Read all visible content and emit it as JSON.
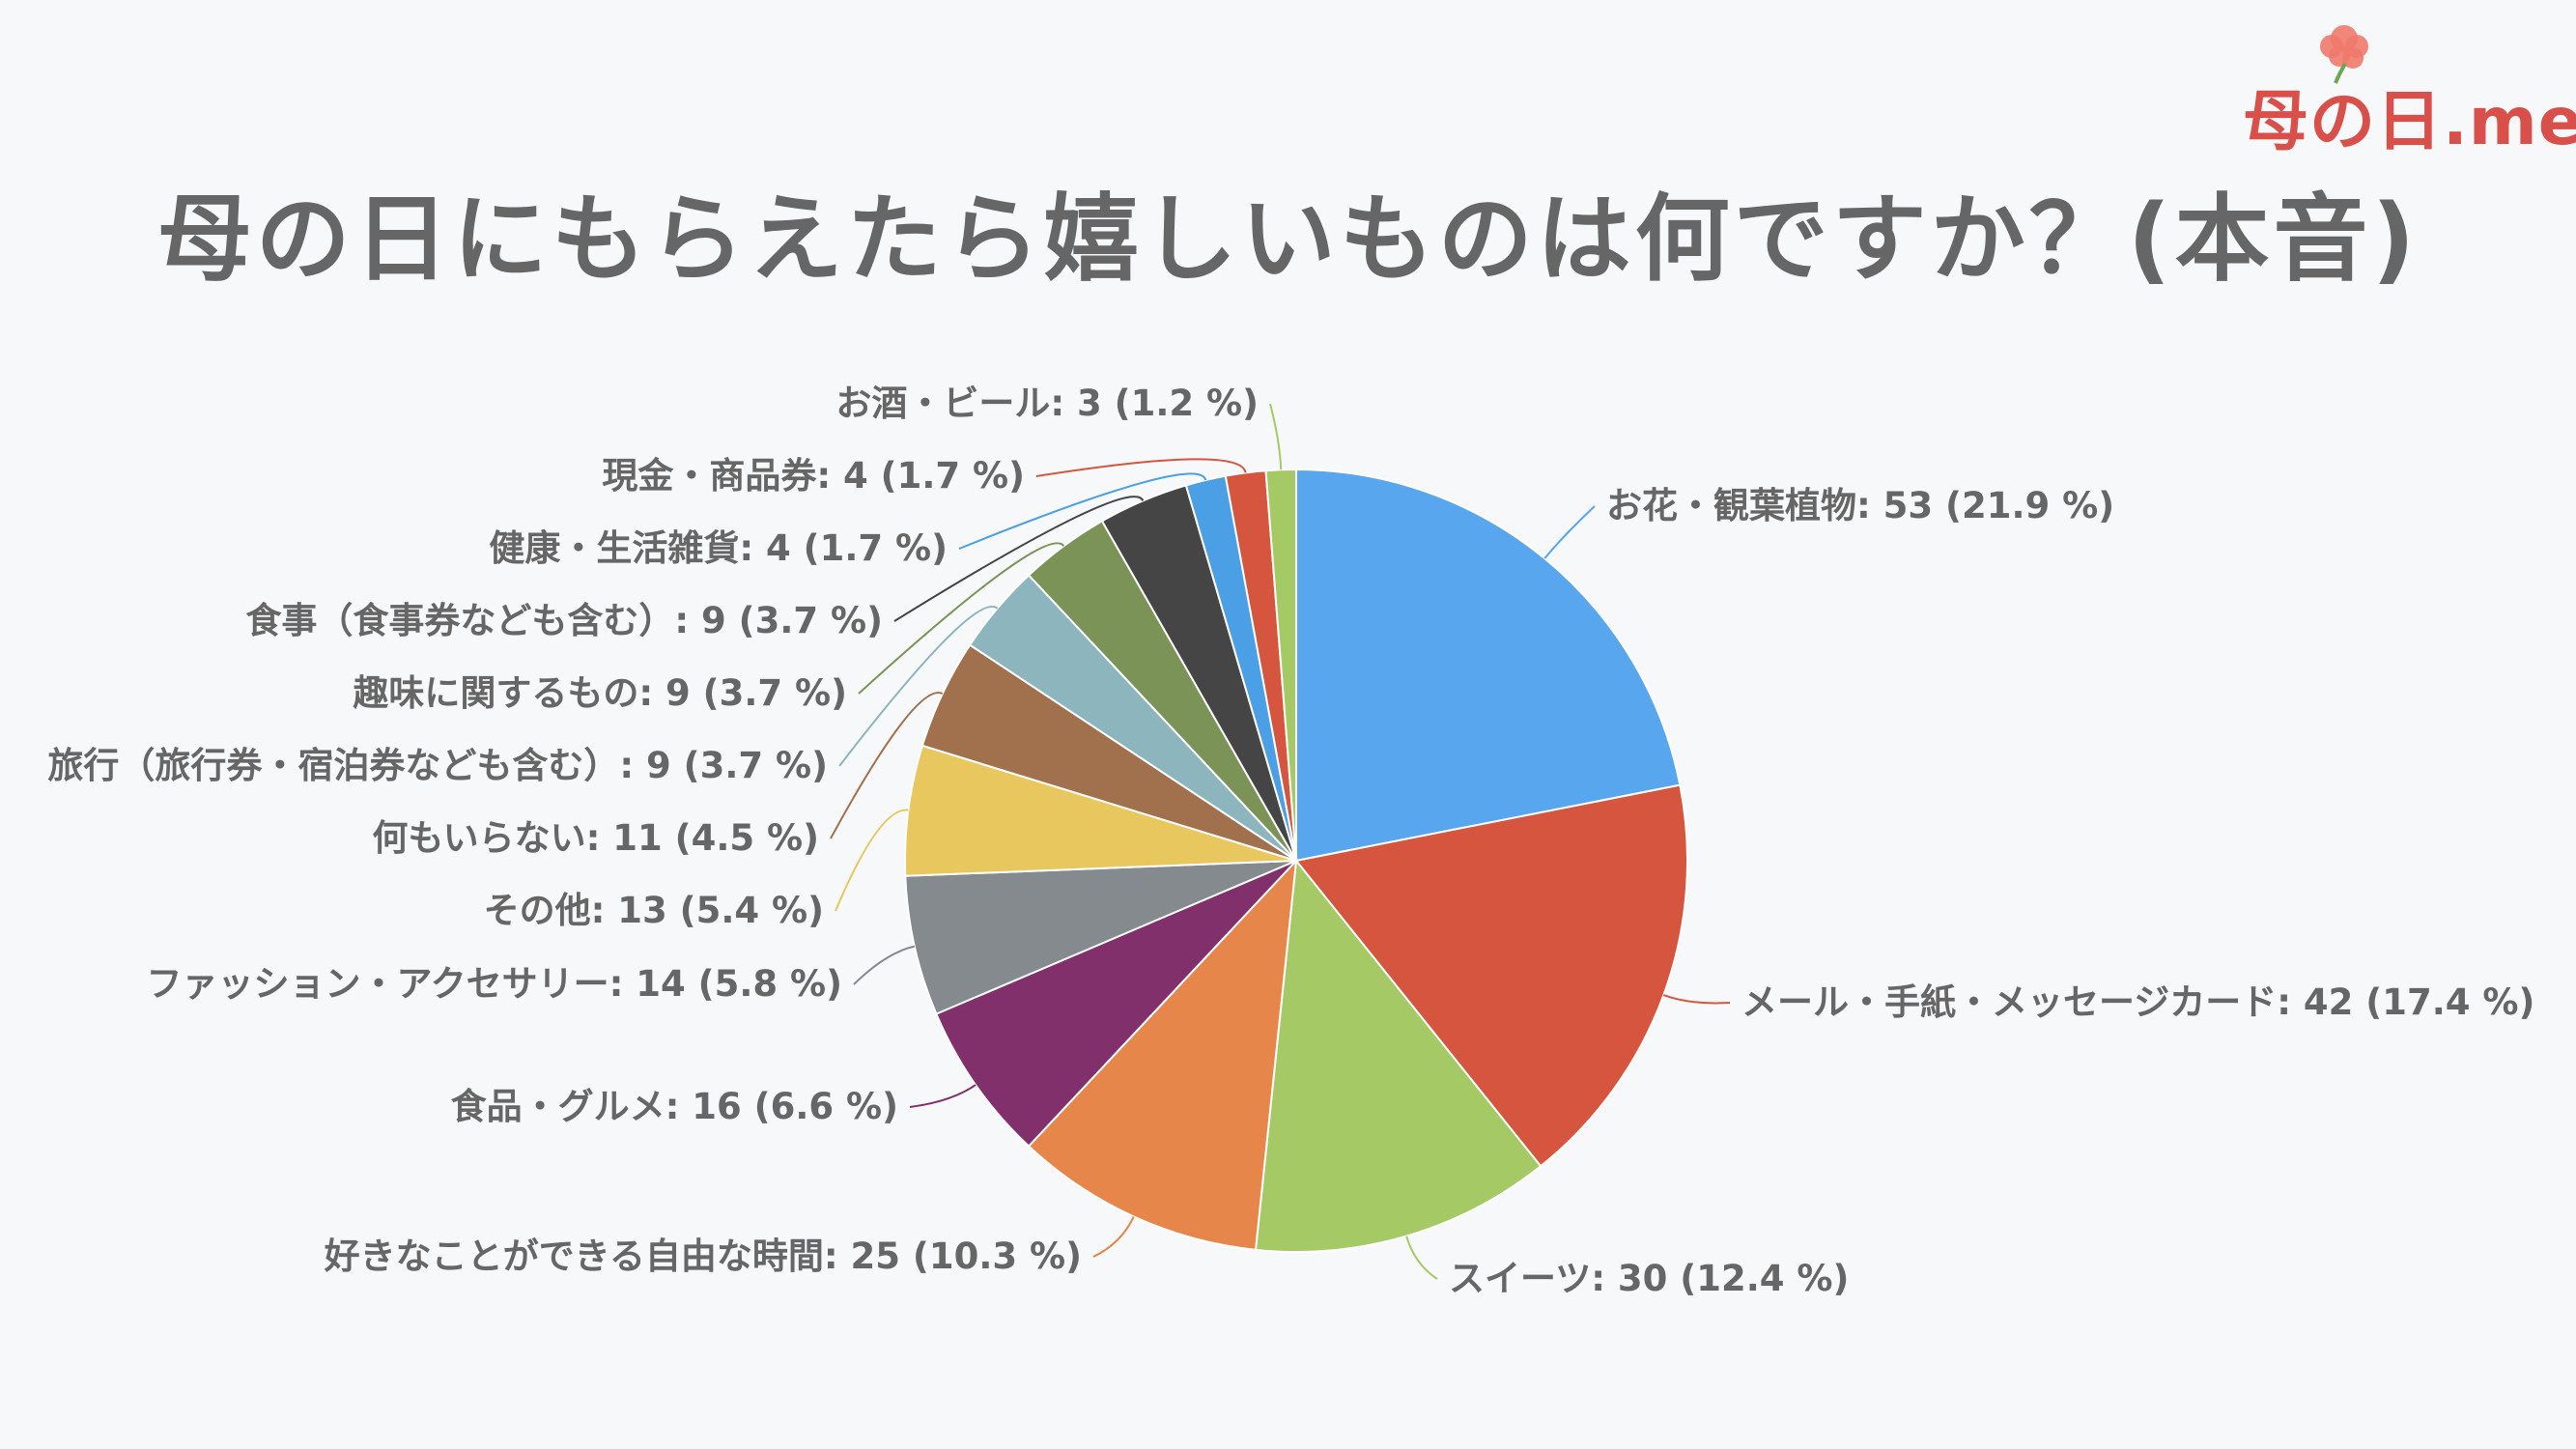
{
  "logo": {
    "text": "母の日.me",
    "flower_color": "#f07a6c"
  },
  "title": "母の日にもらえたら嬉しいものは何ですか？(本音)",
  "chart_data": {
    "type": "pie",
    "title": "母の日にもらえたら嬉しいものは何ですか？(本音)",
    "start": "12 o'clock",
    "direction": "clockwise",
    "label_format": "{name}: {value} ({percent} %)",
    "slices": [
      {
        "name": "お花・観葉植物",
        "value": 53,
        "percent": "21.9",
        "color": "#58a6ee"
      },
      {
        "name": "メール・手紙・メッセージカード",
        "value": 42,
        "percent": "17.4",
        "color": "#d6553e"
      },
      {
        "name": "スイーツ",
        "value": 30,
        "percent": "12.4",
        "color": "#a4c965"
      },
      {
        "name": "好きなことができる自由な時間",
        "value": 25,
        "percent": "10.3",
        "color": "#e6864b"
      },
      {
        "name": "食品・グルメ",
        "value": 16,
        "percent": "6.6",
        "color": "#82306b"
      },
      {
        "name": "ファッション・アクセサリー",
        "value": 14,
        "percent": "5.8",
        "color": "#848a8d"
      },
      {
        "name": "その他",
        "value": 13,
        "percent": "5.4",
        "color": "#e9c75f"
      },
      {
        "name": "何もいらない",
        "value": 11,
        "percent": "4.5",
        "color": "#a1704d"
      },
      {
        "name": "旅行（旅行券・宿泊券なども含む）",
        "value": 9,
        "percent": "3.7",
        "color": "#8db5bd"
      },
      {
        "name": "趣味に関するもの",
        "value": 9,
        "percent": "3.7",
        "color": "#7b9357"
      },
      {
        "name": "食事（食事券なども含む）",
        "value": 9,
        "percent": "3.7",
        "color": "#454545"
      },
      {
        "name": "健康・生活雑貨",
        "value": 4,
        "percent": "1.7",
        "color": "#4a9fe5"
      },
      {
        "name": "現金・商品券",
        "value": 4,
        "percent": "1.7",
        "color": "#d6553e"
      },
      {
        "name": "お酒・ビール",
        "value": 3,
        "percent": "1.2",
        "color": "#a4c965"
      }
    ]
  }
}
